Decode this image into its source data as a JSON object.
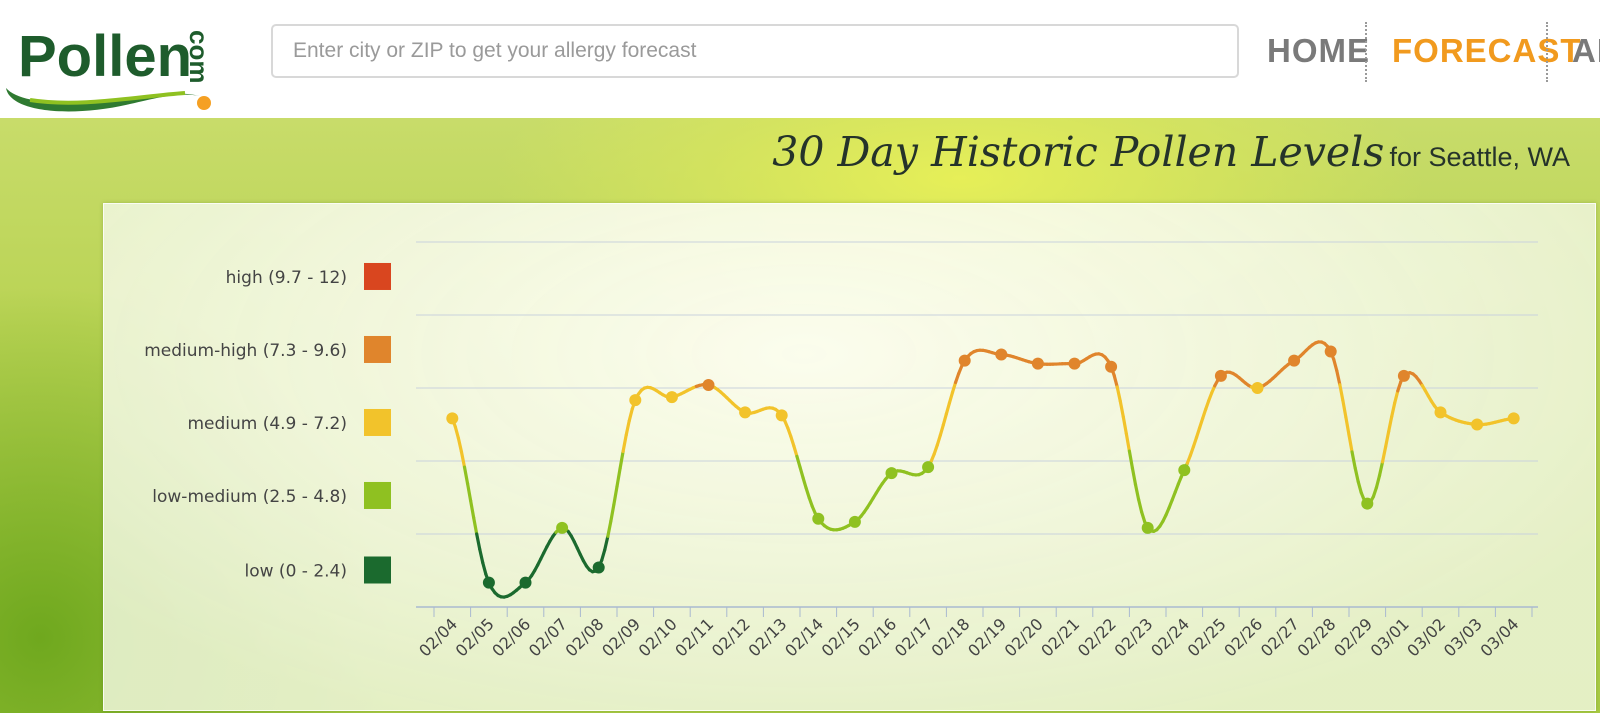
{
  "header": {
    "logo_text": "Pollen",
    "logo_suffix": "com",
    "search_placeholder": "Enter city or ZIP to get your allergy forecast",
    "nav": [
      "HOME",
      "FORECAST",
      "AL"
    ]
  },
  "page": {
    "title": "30 Day Historic Pollen Levels",
    "subtitle": "for Seattle, WA"
  },
  "colors": {
    "high": "#d9461f",
    "medium_high": "#e0852c",
    "medium": "#f2c32b",
    "low_medium": "#8fc121",
    "low": "#1b6a2e",
    "nav_active": "#f19a1e",
    "logo_green": "#1e5c2c"
  },
  "chart_data": {
    "type": "line",
    "title": "30 Day Historic Pollen Levels",
    "xlabel": "",
    "ylabel": "",
    "ylim": [
      0,
      12
    ],
    "grid": true,
    "legend_position": "left",
    "bands": [
      {
        "label": "high (9.7 - 12)",
        "min": 9.7,
        "max": 12,
        "color": "#d9461f"
      },
      {
        "label": "medium-high (7.3 - 9.6)",
        "min": 7.3,
        "max": 9.6,
        "color": "#e0852c"
      },
      {
        "label": "medium (4.9 - 7.2)",
        "min": 4.9,
        "max": 7.2,
        "color": "#f2c32b"
      },
      {
        "label": "low-medium (2.5 - 4.8)",
        "min": 2.5,
        "max": 4.8,
        "color": "#8fc121"
      },
      {
        "label": "low (0 - 2.4)",
        "min": 0,
        "max": 2.4,
        "color": "#1b6a2e"
      }
    ],
    "categories": [
      "02/04",
      "02/05",
      "02/06",
      "02/07",
      "02/08",
      "02/09",
      "02/10",
      "02/11",
      "02/12",
      "02/13",
      "02/14",
      "02/15",
      "02/16",
      "02/17",
      "02/18",
      "02/19",
      "02/20",
      "02/21",
      "02/22",
      "02/23",
      "02/24",
      "02/25",
      "02/26",
      "02/27",
      "02/28",
      "02/29",
      "03/01",
      "03/02",
      "03/03",
      "03/04"
    ],
    "values": [
      6.2,
      0.8,
      0.8,
      2.6,
      1.3,
      6.8,
      6.9,
      7.3,
      6.4,
      6.3,
      2.9,
      2.8,
      4.4,
      4.6,
      8.1,
      8.3,
      8.0,
      8.0,
      7.9,
      2.6,
      4.5,
      7.6,
      7.2,
      8.1,
      8.4,
      3.4,
      7.6,
      6.4,
      6.0,
      6.2
    ]
  }
}
